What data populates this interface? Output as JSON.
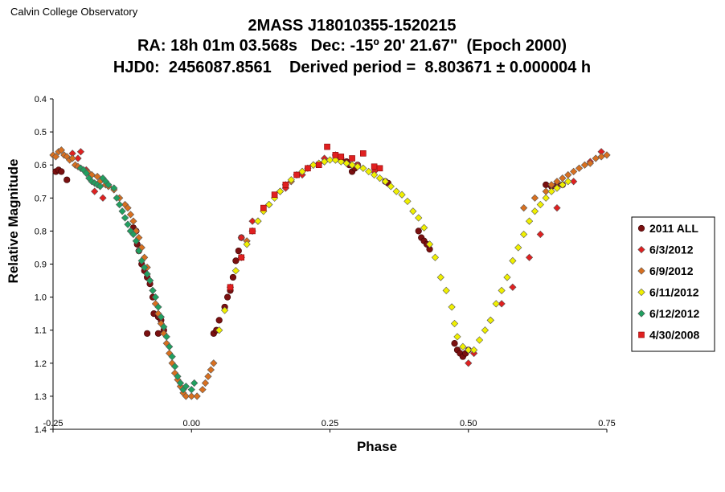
{
  "organization": "Calvin College Observatory",
  "title_lines": [
    "2MASS J18010355-1520215",
    "RA: 18h 01m 03.568s   Dec: -15º 20' 21.67\"  (Epoch 2000)",
    "HJD0:  2456087.8561    Derived period =  8.803671 ± 0.000004 h"
  ],
  "chart_data": {
    "type": "scatter",
    "title": "2MASS J18010355-1520215",
    "xlabel": "Phase",
    "ylabel": "Relative Magnitude",
    "xlim": [
      -0.25,
      0.75
    ],
    "ylim": [
      0.4,
      1.4
    ],
    "y_inverted": true,
    "xticks": [
      "-0.25",
      "0.00",
      "0.25",
      "0.50",
      "0.75"
    ],
    "yticks": [
      "0.4",
      "0.5",
      "0.6",
      "0.7",
      "0.8",
      "0.9",
      "1.0",
      "1.1",
      "1.2",
      "1.3",
      "1.4"
    ],
    "grid": false,
    "legend_position": "right",
    "series": [
      {
        "name": "2011 ALL",
        "marker": "circle",
        "color": "#7a1010",
        "points": [
          [
            -0.245,
            0.62
          ],
          [
            -0.24,
            0.615
          ],
          [
            -0.235,
            0.62
          ],
          [
            -0.225,
            0.645
          ],
          [
            -0.105,
            0.79
          ],
          [
            -0.1,
            0.8
          ],
          [
            -0.098,
            0.84
          ],
          [
            -0.095,
            0.86
          ],
          [
            -0.09,
            0.9
          ],
          [
            -0.085,
            0.92
          ],
          [
            -0.08,
            0.94
          ],
          [
            -0.075,
            0.96
          ],
          [
            -0.07,
            1.0
          ],
          [
            -0.068,
            1.05
          ],
          [
            -0.06,
            1.06
          ],
          [
            -0.055,
            1.07
          ],
          [
            -0.05,
            1.1
          ],
          [
            -0.06,
            1.11
          ],
          [
            -0.08,
            1.11
          ],
          [
            0.04,
            1.11
          ],
          [
            0.045,
            1.1
          ],
          [
            0.05,
            1.07
          ],
          [
            0.06,
            1.03
          ],
          [
            0.065,
            1.0
          ],
          [
            0.07,
            0.98
          ],
          [
            0.075,
            0.94
          ],
          [
            0.08,
            0.89
          ],
          [
            0.085,
            0.86
          ],
          [
            0.09,
            0.82
          ],
          [
            0.27,
            0.58
          ],
          [
            0.28,
            0.59
          ],
          [
            0.285,
            0.6
          ],
          [
            0.29,
            0.62
          ],
          [
            0.295,
            0.61
          ],
          [
            0.3,
            0.6
          ],
          [
            0.35,
            0.65
          ],
          [
            0.355,
            0.655
          ],
          [
            0.41,
            0.8
          ],
          [
            0.415,
            0.82
          ],
          [
            0.42,
            0.83
          ],
          [
            0.425,
            0.84
          ],
          [
            0.43,
            0.855
          ],
          [
            0.475,
            1.14
          ],
          [
            0.48,
            1.16
          ],
          [
            0.485,
            1.17
          ],
          [
            0.49,
            1.18
          ],
          [
            0.495,
            1.17
          ],
          [
            0.5,
            1.16
          ],
          [
            0.64,
            0.66
          ],
          [
            0.65,
            0.665
          ],
          [
            0.66,
            0.66
          ],
          [
            0.67,
            0.66
          ]
        ]
      },
      {
        "name": "6/3/2012",
        "marker": "diamond",
        "color": "#e02020",
        "points": [
          [
            -0.215,
            0.565
          ],
          [
            -0.205,
            0.58
          ],
          [
            -0.2,
            0.56
          ],
          [
            -0.19,
            0.615
          ],
          [
            -0.175,
            0.68
          ],
          [
            -0.16,
            0.7
          ],
          [
            -0.11,
            0.8
          ],
          [
            0.09,
            0.82
          ],
          [
            0.11,
            0.77
          ],
          [
            0.14,
            0.72
          ],
          [
            0.17,
            0.67
          ],
          [
            0.2,
            0.63
          ],
          [
            0.22,
            0.6
          ],
          [
            0.24,
            0.58
          ],
          [
            0.26,
            0.57
          ],
          [
            0.3,
            0.6
          ],
          [
            0.33,
            0.62
          ],
          [
            0.5,
            1.2
          ],
          [
            0.51,
            1.17
          ],
          [
            0.54,
            1.07
          ],
          [
            0.56,
            1.02
          ],
          [
            0.58,
            0.97
          ],
          [
            0.61,
            0.88
          ],
          [
            0.63,
            0.81
          ],
          [
            0.66,
            0.73
          ],
          [
            0.69,
            0.65
          ],
          [
            0.72,
            0.59
          ],
          [
            0.74,
            0.56
          ]
        ]
      },
      {
        "name": "6/9/2012",
        "marker": "diamond",
        "color": "#d87020",
        "points": [
          [
            -0.25,
            0.57
          ],
          [
            -0.245,
            0.575
          ],
          [
            -0.24,
            0.56
          ],
          [
            -0.235,
            0.555
          ],
          [
            -0.23,
            0.57
          ],
          [
            -0.225,
            0.575
          ],
          [
            -0.22,
            0.585
          ],
          [
            -0.215,
            0.58
          ],
          [
            -0.21,
            0.6
          ],
          [
            -0.205,
            0.605
          ],
          [
            -0.2,
            0.61
          ],
          [
            -0.195,
            0.615
          ],
          [
            -0.19,
            0.62
          ],
          [
            -0.185,
            0.625
          ],
          [
            -0.18,
            0.63
          ],
          [
            -0.17,
            0.635
          ],
          [
            -0.165,
            0.65
          ],
          [
            -0.155,
            0.66
          ],
          [
            -0.15,
            0.665
          ],
          [
            -0.14,
            0.675
          ],
          [
            -0.13,
            0.7
          ],
          [
            -0.12,
            0.72
          ],
          [
            -0.115,
            0.73
          ],
          [
            -0.11,
            0.75
          ],
          [
            -0.105,
            0.77
          ],
          [
            -0.1,
            0.8
          ],
          [
            -0.095,
            0.82
          ],
          [
            -0.09,
            0.85
          ],
          [
            -0.085,
            0.88
          ],
          [
            -0.08,
            0.91
          ],
          [
            -0.075,
            0.95
          ],
          [
            -0.07,
            0.98
          ],
          [
            -0.065,
            1.02
          ],
          [
            -0.06,
            1.05
          ],
          [
            -0.055,
            1.08
          ],
          [
            -0.05,
            1.11
          ],
          [
            -0.045,
            1.14
          ],
          [
            -0.04,
            1.17
          ],
          [
            -0.035,
            1.2
          ],
          [
            -0.03,
            1.23
          ],
          [
            -0.025,
            1.25
          ],
          [
            -0.02,
            1.27
          ],
          [
            -0.015,
            1.29
          ],
          [
            -0.01,
            1.3
          ],
          [
            0.0,
            1.3
          ],
          [
            0.01,
            1.3
          ],
          [
            0.02,
            1.28
          ],
          [
            0.025,
            1.26
          ],
          [
            0.03,
            1.24
          ],
          [
            0.035,
            1.22
          ],
          [
            0.04,
            1.2
          ],
          [
            0.1,
            0.83
          ],
          [
            0.12,
            0.77
          ],
          [
            0.14,
            0.72
          ],
          [
            0.16,
            0.68
          ],
          [
            0.18,
            0.65
          ],
          [
            0.2,
            0.62
          ],
          [
            0.22,
            0.6
          ],
          [
            0.24,
            0.59
          ],
          [
            0.26,
            0.585
          ],
          [
            0.6,
            0.73
          ],
          [
            0.62,
            0.7
          ],
          [
            0.64,
            0.68
          ],
          [
            0.65,
            0.66
          ],
          [
            0.66,
            0.65
          ],
          [
            0.67,
            0.64
          ],
          [
            0.68,
            0.63
          ],
          [
            0.69,
            0.62
          ],
          [
            0.7,
            0.61
          ],
          [
            0.71,
            0.6
          ],
          [
            0.72,
            0.595
          ],
          [
            0.73,
            0.58
          ],
          [
            0.74,
            0.575
          ],
          [
            0.75,
            0.57
          ]
        ]
      },
      {
        "name": "6/11/2012",
        "marker": "diamond",
        "color": "#f0f000",
        "points": [
          [
            0.05,
            1.1
          ],
          [
            0.06,
            1.04
          ],
          [
            0.07,
            0.97
          ],
          [
            0.08,
            0.92
          ],
          [
            0.09,
            0.88
          ],
          [
            0.1,
            0.84
          ],
          [
            0.11,
            0.8
          ],
          [
            0.12,
            0.77
          ],
          [
            0.13,
            0.74
          ],
          [
            0.14,
            0.72
          ],
          [
            0.15,
            0.7
          ],
          [
            0.16,
            0.68
          ],
          [
            0.17,
            0.66
          ],
          [
            0.18,
            0.645
          ],
          [
            0.19,
            0.63
          ],
          [
            0.2,
            0.62
          ],
          [
            0.21,
            0.61
          ],
          [
            0.22,
            0.6
          ],
          [
            0.23,
            0.595
          ],
          [
            0.24,
            0.59
          ],
          [
            0.25,
            0.585
          ],
          [
            0.26,
            0.585
          ],
          [
            0.27,
            0.59
          ],
          [
            0.28,
            0.595
          ],
          [
            0.29,
            0.6
          ],
          [
            0.3,
            0.605
          ],
          [
            0.31,
            0.61
          ],
          [
            0.32,
            0.62
          ],
          [
            0.33,
            0.63
          ],
          [
            0.34,
            0.64
          ],
          [
            0.35,
            0.65
          ],
          [
            0.36,
            0.665
          ],
          [
            0.37,
            0.68
          ],
          [
            0.38,
            0.69
          ],
          [
            0.39,
            0.71
          ],
          [
            0.4,
            0.74
          ],
          [
            0.41,
            0.76
          ],
          [
            0.42,
            0.79
          ],
          [
            0.43,
            0.84
          ],
          [
            0.44,
            0.88
          ],
          [
            0.45,
            0.94
          ],
          [
            0.46,
            0.98
          ],
          [
            0.47,
            1.03
          ],
          [
            0.475,
            1.08
          ],
          [
            0.48,
            1.12
          ],
          [
            0.49,
            1.15
          ],
          [
            0.5,
            1.16
          ],
          [
            0.51,
            1.16
          ],
          [
            0.52,
            1.13
          ],
          [
            0.53,
            1.1
          ],
          [
            0.54,
            1.07
          ],
          [
            0.55,
            1.02
          ],
          [
            0.56,
            0.98
          ],
          [
            0.57,
            0.94
          ],
          [
            0.58,
            0.89
          ],
          [
            0.59,
            0.85
          ],
          [
            0.6,
            0.81
          ],
          [
            0.61,
            0.77
          ],
          [
            0.62,
            0.74
          ],
          [
            0.63,
            0.72
          ],
          [
            0.64,
            0.7
          ],
          [
            0.65,
            0.68
          ],
          [
            0.66,
            0.67
          ],
          [
            0.67,
            0.66
          ],
          [
            0.68,
            0.65
          ]
        ]
      },
      {
        "name": "6/12/2012",
        "marker": "diamond",
        "color": "#20a060",
        "points": [
          [
            -0.2,
            0.61
          ],
          [
            -0.195,
            0.615
          ],
          [
            -0.19,
            0.625
          ],
          [
            -0.185,
            0.64
          ],
          [
            -0.18,
            0.65
          ],
          [
            -0.175,
            0.655
          ],
          [
            -0.17,
            0.66
          ],
          [
            -0.165,
            0.665
          ],
          [
            -0.16,
            0.64
          ],
          [
            -0.155,
            0.65
          ],
          [
            -0.15,
            0.66
          ],
          [
            -0.14,
            0.67
          ],
          [
            -0.135,
            0.7
          ],
          [
            -0.13,
            0.72
          ],
          [
            -0.125,
            0.74
          ],
          [
            -0.12,
            0.76
          ],
          [
            -0.115,
            0.78
          ],
          [
            -0.11,
            0.8
          ],
          [
            -0.105,
            0.81
          ],
          [
            -0.1,
            0.83
          ],
          [
            -0.095,
            0.86
          ],
          [
            -0.09,
            0.89
          ],
          [
            -0.085,
            0.91
          ],
          [
            -0.08,
            0.93
          ],
          [
            -0.075,
            0.95
          ],
          [
            -0.07,
            0.98
          ],
          [
            -0.065,
            1.0
          ],
          [
            -0.06,
            1.03
          ],
          [
            -0.055,
            1.06
          ],
          [
            -0.05,
            1.09
          ],
          [
            -0.045,
            1.12
          ],
          [
            -0.04,
            1.15
          ],
          [
            -0.035,
            1.18
          ],
          [
            -0.03,
            1.21
          ],
          [
            -0.025,
            1.24
          ],
          [
            -0.02,
            1.26
          ],
          [
            -0.015,
            1.28
          ],
          [
            -0.01,
            1.27
          ],
          [
            0.0,
            1.28
          ],
          [
            0.005,
            1.26
          ]
        ]
      },
      {
        "name": "4/30/2008",
        "marker": "square",
        "color": "#e02020",
        "points": [
          [
            0.07,
            0.97
          ],
          [
            0.09,
            0.88
          ],
          [
            0.11,
            0.8
          ],
          [
            0.13,
            0.73
          ],
          [
            0.15,
            0.69
          ],
          [
            0.17,
            0.66
          ],
          [
            0.19,
            0.63
          ],
          [
            0.21,
            0.61
          ],
          [
            0.23,
            0.6
          ],
          [
            0.245,
            0.545
          ],
          [
            0.26,
            0.57
          ],
          [
            0.27,
            0.575
          ],
          [
            0.29,
            0.58
          ],
          [
            0.31,
            0.565
          ],
          [
            0.33,
            0.605
          ],
          [
            0.34,
            0.61
          ]
        ]
      }
    ]
  }
}
